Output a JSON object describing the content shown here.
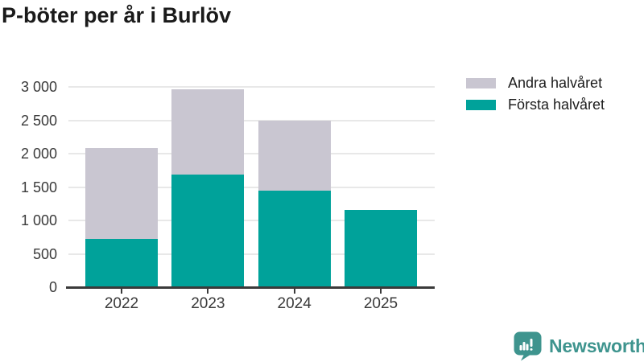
{
  "title": "P-böter per år i Burlöv",
  "legend": {
    "items": [
      {
        "label": "Andra halvåret",
        "color": "#c9c6d1"
      },
      {
        "label": "Första halvåret",
        "color": "#00a29a"
      }
    ]
  },
  "chart_data": {
    "type": "bar",
    "stacked": true,
    "title": "P-böter per år i Burlöv",
    "categories": [
      "2022",
      "2023",
      "2024",
      "2025"
    ],
    "series": [
      {
        "name": "Första halvåret",
        "color": "#00a29a",
        "values": [
          720,
          1690,
          1440,
          1160
        ]
      },
      {
        "name": "Andra halvåret",
        "color": "#c9c6d1",
        "values": [
          1370,
          1280,
          1050,
          0
        ]
      }
    ],
    "totals": [
      2090,
      2970,
      2490,
      1160
    ],
    "xlabel": "",
    "ylabel": "",
    "ylim": [
      0,
      3000
    ],
    "ytick_values": [
      0,
      500,
      1000,
      1500,
      2000,
      2500,
      3000
    ],
    "yticks": [
      "0",
      "500",
      "1 000",
      "1 500",
      "2 000",
      "2 500",
      "3 000"
    ],
    "grid": true,
    "legend_position": "top-right"
  },
  "colors": {
    "first_half": "#00a29a",
    "second_half": "#c9c6d1",
    "gridline": "#e8e8e8",
    "axis": "#3a3a3a",
    "title": "#1a1a1a",
    "brand": "#3e948e"
  },
  "footer": {
    "brand": "Newsworthy",
    "logo_icon": "bar-chart-speech-bubble-icon"
  }
}
